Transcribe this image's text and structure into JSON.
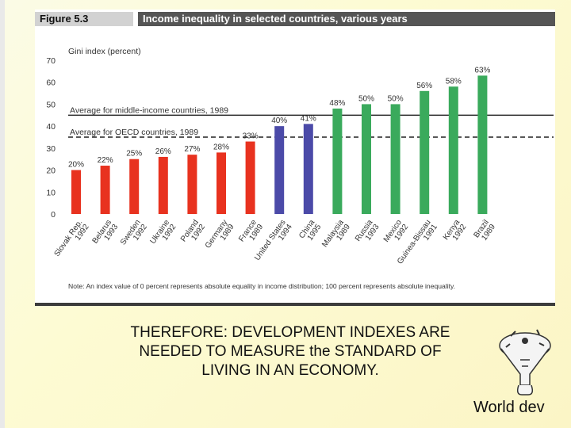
{
  "figure": {
    "number": "Figure 5.3",
    "title": "Income inequality in selected countries, various years",
    "note": "Note: An index value of 0 percent represents absolute equality in income distribution; 100 percent represents absolute inequality."
  },
  "chart_data": {
    "type": "bar",
    "title": "Income inequality in selected countries, various years",
    "ylabel": "Gini index (percent)",
    "xlabel": "",
    "ylim": [
      0,
      70
    ],
    "yticks": [
      0,
      10,
      20,
      30,
      40,
      50,
      60,
      70
    ],
    "grid": false,
    "categories": [
      [
        "Slovak Rep.",
        "1992"
      ],
      [
        "Belarus",
        "1993"
      ],
      [
        "Sweden",
        "1992"
      ],
      [
        "Ukraine",
        "1992"
      ],
      [
        "Poland",
        "1992"
      ],
      [
        "Germany",
        "1989"
      ],
      [
        "France",
        "1989"
      ],
      [
        "United States",
        "1994"
      ],
      [
        "China",
        "1995"
      ],
      [
        "Malaysia",
        "1989"
      ],
      [
        "Russia",
        "1993"
      ],
      [
        "Mexico",
        "1992"
      ],
      [
        "Guinea-Bissau",
        "1991"
      ],
      [
        "Kenya",
        "1992"
      ],
      [
        "Brazil",
        "1989"
      ]
    ],
    "values": [
      20,
      22,
      25,
      26,
      27,
      28,
      33,
      40,
      41,
      48,
      50,
      50,
      56,
      58,
      63
    ],
    "value_labels": [
      "20%",
      "22%",
      "25%",
      "26%",
      "27%",
      "28%",
      "33%",
      "40%",
      "41%",
      "48%",
      "50%",
      "50%",
      "56%",
      "58%",
      "63%"
    ],
    "groups": [
      "low",
      "low",
      "low",
      "low",
      "low",
      "low",
      "low",
      "mid",
      "mid",
      "high",
      "high",
      "high",
      "high",
      "high",
      "high"
    ],
    "group_colors": {
      "low": "#e8321f",
      "mid": "#4b4aa8",
      "high": "#3aaa5c"
    },
    "reference_lines": [
      {
        "label": "Average for middle-income countries, 1989",
        "value": 45,
        "style": "solid"
      },
      {
        "label": "Average for OECD countries, 1989",
        "value": 35,
        "style": "dashed"
      }
    ]
  },
  "caption": {
    "line1": "THEREFORE: DEVELOPMENT INDEXES ARE",
    "line2": "NEEDED TO MEASURE the STANDARD OF",
    "line3": "LIVING IN AN ECONOMY."
  },
  "footer": {
    "label": "World dev"
  }
}
